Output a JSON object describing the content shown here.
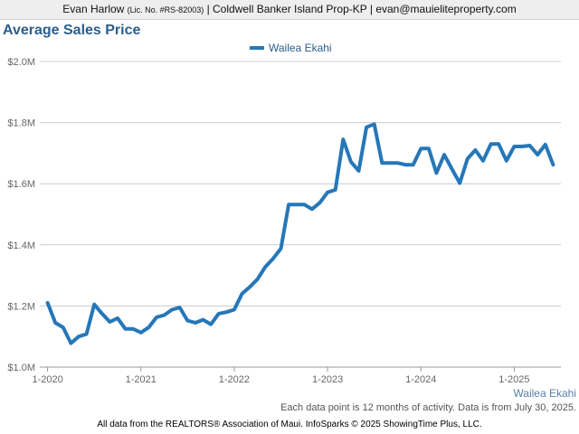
{
  "header": {
    "name": "Evan Harlow",
    "license": "(Lic. No. #RS-82003)",
    "rest": "| Coldwell Banker Island Prop-KP | evan@mauieliteproperty.com"
  },
  "title": "Average Sales Price",
  "series_label": "Wailea Ekahi",
  "note": "Each data point is 12 months of activity. Data is from July 30, 2025.",
  "footer": "All data from the REALTORS® Association of Maui. InfoSparks © 2025 ShowingTime Plus, LLC.",
  "colors": {
    "line": "#2577b8",
    "title": "#2b5d8a",
    "grid": "#cccccc"
  },
  "chart_data": {
    "type": "line",
    "title": "Average Sales Price",
    "xlabel": "",
    "ylabel": "",
    "ylim": [
      1000000,
      2000000
    ],
    "xlim": [
      "2019-12",
      "2025-07"
    ],
    "grid": true,
    "legend_position": "top-center",
    "y_ticks": [
      "$1.0M",
      "$1.2M",
      "$1.4M",
      "$1.6M",
      "$1.8M",
      "$2.0M"
    ],
    "x_ticks": [
      "1-2020",
      "1-2021",
      "1-2022",
      "1-2023",
      "1-2024",
      "1-2025"
    ],
    "series": [
      {
        "name": "Wailea Ekahi",
        "x": [
          "2020-01",
          "2020-02",
          "2020-03",
          "2020-04",
          "2020-05",
          "2020-06",
          "2020-07",
          "2020-08",
          "2020-09",
          "2020-10",
          "2020-11",
          "2020-12",
          "2021-01",
          "2021-02",
          "2021-03",
          "2021-04",
          "2021-05",
          "2021-06",
          "2021-07",
          "2021-08",
          "2021-09",
          "2021-10",
          "2021-11",
          "2021-12",
          "2022-01",
          "2022-02",
          "2022-03",
          "2022-04",
          "2022-05",
          "2022-06",
          "2022-07",
          "2022-08",
          "2022-09",
          "2022-10",
          "2022-11",
          "2022-12",
          "2023-01",
          "2023-02",
          "2023-03",
          "2023-04",
          "2023-05",
          "2023-06",
          "2023-07",
          "2023-08",
          "2023-09",
          "2023-10",
          "2023-11",
          "2023-12",
          "2024-01",
          "2024-02",
          "2024-03",
          "2024-04",
          "2024-05",
          "2024-06",
          "2024-07",
          "2024-08",
          "2024-09",
          "2024-10",
          "2024-11",
          "2024-12",
          "2025-01",
          "2025-02",
          "2025-03",
          "2025-04",
          "2025-05",
          "2025-06"
        ],
        "values": [
          1210000,
          1145000,
          1130000,
          1078000,
          1100000,
          1108000,
          1205000,
          1175000,
          1148000,
          1160000,
          1125000,
          1125000,
          1113000,
          1130000,
          1163000,
          1170000,
          1188000,
          1195000,
          1152000,
          1145000,
          1155000,
          1140000,
          1175000,
          1180000,
          1188000,
          1240000,
          1262000,
          1288000,
          1328000,
          1355000,
          1388000,
          1532000,
          1532000,
          1532000,
          1517000,
          1538000,
          1572000,
          1580000,
          1745000,
          1672000,
          1642000,
          1785000,
          1795000,
          1668000,
          1668000,
          1668000,
          1662000,
          1662000,
          1715000,
          1715000,
          1635000,
          1695000,
          1648000,
          1602000,
          1682000,
          1710000,
          1675000,
          1730000,
          1730000,
          1675000,
          1722000,
          1722000,
          1725000,
          1695000,
          1728000,
          1662000
        ]
      }
    ]
  }
}
